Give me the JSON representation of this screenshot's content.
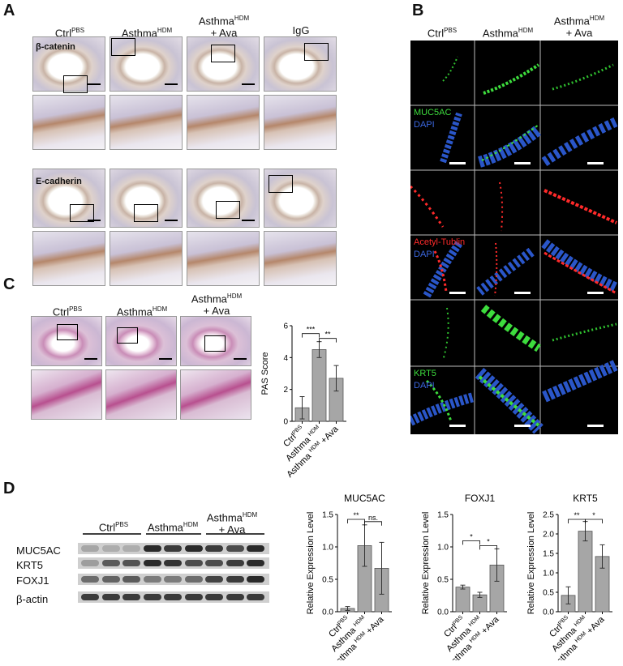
{
  "panels": {
    "A": "A",
    "B": "B",
    "C": "C",
    "D": "D"
  },
  "groups": {
    "ctrl": {
      "main": "Ctrl",
      "sup": "PBS"
    },
    "asthma": {
      "main": "Asthma",
      "sup": "HDM"
    },
    "asthma_ava": {
      "main": "Asthma",
      "sup": "HDM",
      "line2": "+ Ava"
    },
    "igg": "IgG"
  },
  "panelA": {
    "stains": [
      "β-catenin",
      "E-cadherin"
    ]
  },
  "panelB": {
    "labels": [
      {
        "marker": "MUC5AC",
        "dapi": "DAPI",
        "marker_color": "#3ddc3d"
      },
      {
        "marker": "Acetyl-Tublin",
        "dapi": "DAPI",
        "marker_color": "#ff2a2a"
      },
      {
        "marker": "KRT5",
        "dapi": "DAPI",
        "marker_color": "#3ddc3d"
      }
    ]
  },
  "panelD_blot": {
    "proteins": [
      "MUC5AC",
      "KRT5",
      "FOXJ1",
      "β-actin"
    ]
  },
  "chart_data": [
    {
      "type": "bar",
      "title": "",
      "ylabel": "PAS Score",
      "categories": [
        "Ctrl^PBS",
        "Asthma ^HDM",
        "Asthma ^HDM +Ava"
      ],
      "values": [
        0.85,
        4.5,
        2.7
      ],
      "errors": [
        0.7,
        0.5,
        0.8
      ],
      "ylim": [
        0,
        6
      ],
      "yticks": [
        "0",
        "2",
        "4",
        "6"
      ],
      "significance": [
        {
          "from": 0,
          "to": 1,
          "label": "***"
        },
        {
          "from": 1,
          "to": 2,
          "label": "**"
        }
      ]
    },
    {
      "type": "bar",
      "title": "MUC5AC",
      "ylabel": "Relative Expression Level",
      "categories": [
        "Ctrl^PBS",
        "Asthma ^HDM",
        "Asthma ^HDM +Ava"
      ],
      "values": [
        0.05,
        1.02,
        0.67
      ],
      "errors": [
        0.03,
        0.32,
        0.4
      ],
      "ylim": [
        0,
        1.5
      ],
      "yticks": [
        "0.0",
        "0.5",
        "1.0",
        "1.5"
      ],
      "significance": [
        {
          "from": 0,
          "to": 1,
          "label": "**"
        },
        {
          "from": 1,
          "to": 2,
          "label": "ns."
        }
      ]
    },
    {
      "type": "bar",
      "title": "FOXJ1",
      "ylabel": "Relative Expression Level",
      "categories": [
        "Ctrl^PBS",
        "Asthma ^HDM",
        "Asthma ^HDM +Ava"
      ],
      "values": [
        0.38,
        0.26,
        0.72
      ],
      "errors": [
        0.03,
        0.04,
        0.25
      ],
      "ylim": [
        0,
        1.5
      ],
      "yticks": [
        "0.0",
        "0.5",
        "1.0",
        "1.5"
      ],
      "significance": [
        {
          "from": 0,
          "to": 1,
          "label": "*"
        },
        {
          "from": 1,
          "to": 2,
          "label": "*"
        }
      ]
    },
    {
      "type": "bar",
      "title": "KRT5",
      "ylabel": "Relative Expression Level",
      "categories": [
        "Ctrl^PBS",
        "Asthma ^HDM",
        "Asthma ^HDM +Ava"
      ],
      "values": [
        0.42,
        2.07,
        1.42
      ],
      "errors": [
        0.22,
        0.25,
        0.3
      ],
      "ylim": [
        0,
        2.5
      ],
      "yticks": [
        "0.0",
        "0.5",
        "1.0",
        "1.5",
        "2.0",
        "2.5"
      ],
      "significance": [
        {
          "from": 0,
          "to": 1,
          "label": "**"
        },
        {
          "from": 1,
          "to": 2,
          "label": "*"
        }
      ]
    }
  ]
}
